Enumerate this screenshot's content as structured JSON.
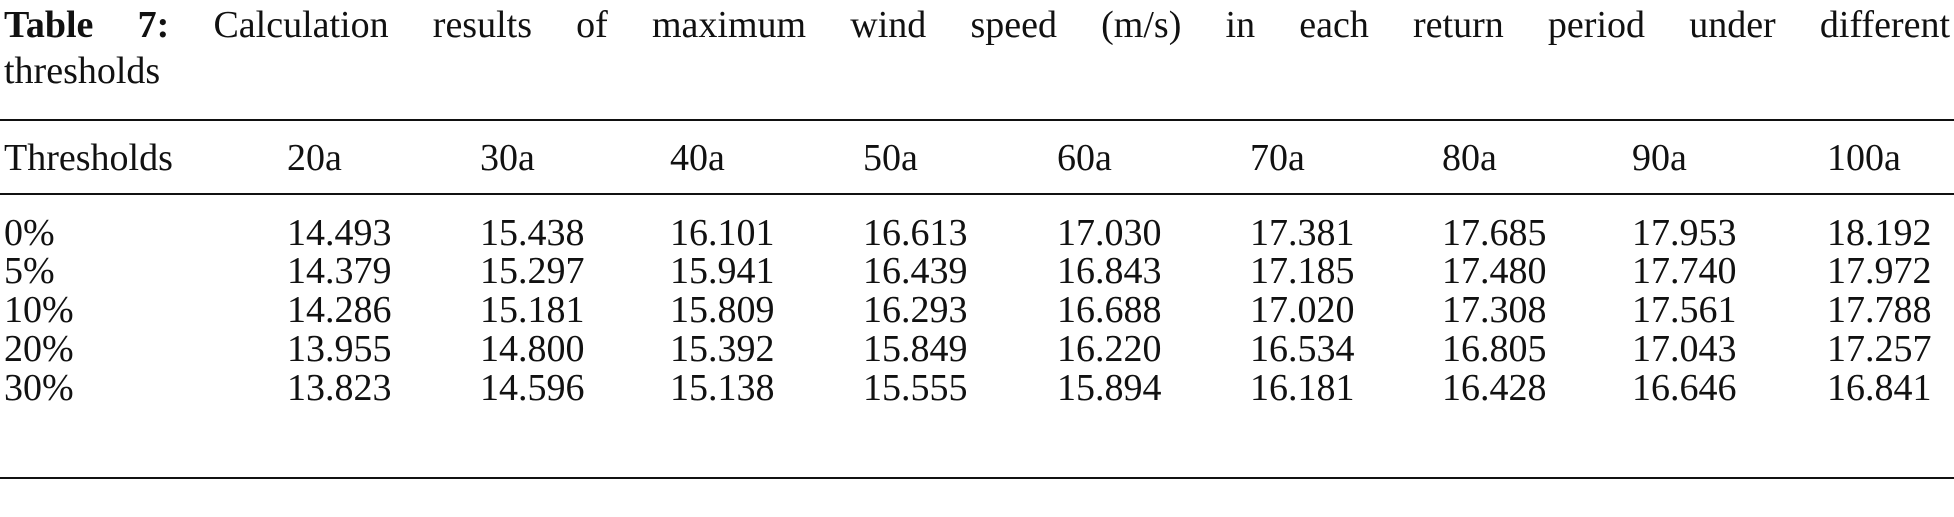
{
  "title": {
    "label": "Table 7:",
    "lines": [
      "Calculation results of maximum wind speed (m/s) in each return period under different",
      "thresholds"
    ]
  },
  "table": {
    "header": [
      "Thresholds",
      "20a",
      "30a",
      "40a",
      "50a",
      "60a",
      "70a",
      "80a",
      "90a",
      "100a"
    ],
    "rows": [
      [
        "0%",
        "14.493",
        "15.438",
        "16.101",
        "16.613",
        "17.030",
        "17.381",
        "17.685",
        "17.953",
        "18.192"
      ],
      [
        "5%",
        "14.379",
        "15.297",
        "15.941",
        "16.439",
        "16.843",
        "17.185",
        "17.480",
        "17.740",
        "17.972"
      ],
      [
        "10%",
        "14.286",
        "15.181",
        "15.809",
        "16.293",
        "16.688",
        "17.020",
        "17.308",
        "17.561",
        "17.788"
      ],
      [
        "20%",
        "13.955",
        "14.800",
        "15.392",
        "15.849",
        "16.220",
        "16.534",
        "16.805",
        "17.043",
        "17.257"
      ],
      [
        "30%",
        "13.823",
        "14.596",
        "15.138",
        "15.555",
        "15.894",
        "16.181",
        "16.428",
        "16.646",
        "16.841"
      ]
    ]
  }
}
